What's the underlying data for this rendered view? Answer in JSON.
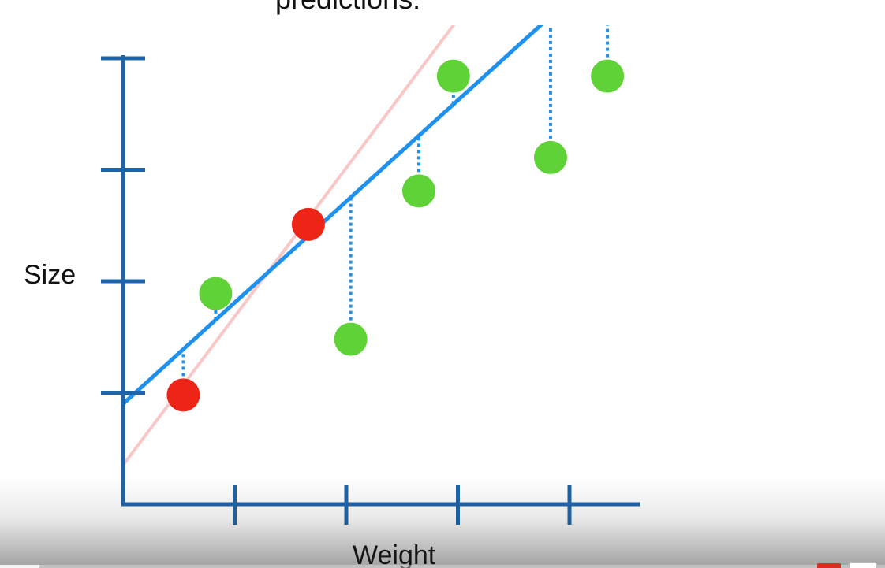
{
  "chart_data": {
    "type": "scatter",
    "caption": "predictions.",
    "xlabel": "Weight",
    "ylabel": "Size",
    "xlim": [
      0,
      4.8
    ],
    "ylim": [
      -0.75,
      4.05
    ],
    "x_ticks": [
      1,
      2,
      3,
      4
    ],
    "y_ticks": [
      1,
      2,
      3,
      4
    ],
    "grid": false,
    "lines": [
      {
        "kind": "fit",
        "color": "#1e90ee",
        "x0": 0,
        "y0": 0.9,
        "x1": 3.8,
        "y1": 4.35
      },
      {
        "kind": "original",
        "color": "#f8c8c8",
        "x0": 0,
        "y0": 0.35,
        "x1": 3.0,
        "y1": 4.35
      }
    ],
    "points": [
      {
        "x": 0.54,
        "y": 0.98,
        "color": "#ee2416",
        "group": "training"
      },
      {
        "x": 1.66,
        "y": 2.51,
        "color": "#ee2416",
        "group": "training"
      },
      {
        "x": 0.83,
        "y": 1.89,
        "color": "#5fd237",
        "group": "testing"
      },
      {
        "x": 2.04,
        "y": 1.48,
        "color": "#5fd237",
        "group": "testing"
      },
      {
        "x": 2.65,
        "y": 2.81,
        "color": "#5fd237",
        "group": "testing"
      },
      {
        "x": 2.96,
        "y": 3.84,
        "color": "#5fd237",
        "group": "testing"
      },
      {
        "x": 3.83,
        "y": 3.11,
        "color": "#5fd237",
        "group": "testing"
      },
      {
        "x": 4.34,
        "y": 3.84,
        "color": "#5fd237",
        "group": "testing"
      }
    ],
    "colors": {
      "axis": "#1f64a8",
      "residual": "#1e90ee"
    }
  },
  "player": {
    "progress": 0.045
  }
}
